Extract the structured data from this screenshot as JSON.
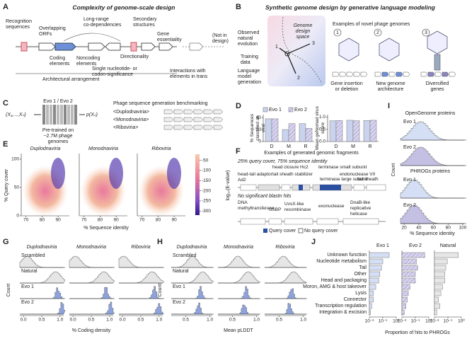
{
  "panel_labels": [
    "A",
    "B",
    "C",
    "D",
    "E",
    "F",
    "G",
    "H",
    "I",
    "J"
  ],
  "A": {
    "title": "Complexity of genome-scale design",
    "labels": [
      "Recognition sequences",
      "Overlapping ORFs",
      "Long-range co-dependencies",
      "Secondary structures",
      "Gene essentiality",
      "Coding elements",
      "Noncoding elements",
      "Directionality",
      "(Not in design)",
      "Single nucleotide- or codon-significance",
      "Interactions with elements in trans",
      "Architectural arrangement"
    ]
  },
  "B": {
    "title": "Synthetic genome design by generative language modeling",
    "labels": [
      "Observed natural evolution",
      "Training data",
      "Language model generation",
      "Genome design space",
      "Examples of novel phage genomes",
      "Gene insertion or deletion",
      "New genome architecture",
      "Diversified genes"
    ],
    "markers": [
      "1",
      "2",
      "3"
    ]
  },
  "C": {
    "model": "Evo 1 / Evo 2",
    "input": "(X₁,...,Xₙ)",
    "output": "p(Xₙ)",
    "pretrain": "Pre-trained on ~2.7M phage genomes",
    "bench_title": "Phage sequence generation benchmarking",
    "prompts": [
      "<Duplodnaviria>",
      "<Monodnaviria>",
      "<Riboviria>"
    ]
  },
  "D": {
    "series_names": [
      "Evo 1",
      "Evo 2"
    ],
    "colors": [
      "#c9d3ee",
      "#bdb7de"
    ],
    "categories": [
      "D",
      "M",
      "R"
    ],
    "charts": [
      {
        "ylabel": "% Sequences classified as viral",
        "ylim": [
          0,
          45
        ],
        "yticks": [
          0,
          20,
          40
        ],
        "series": [
          [
            38,
            20,
            30
          ],
          [
            38,
            30,
            22
          ]
        ]
      },
      {
        "ylabel": "Mean geNomad virus score",
        "ylim": [
          0,
          1.1
        ],
        "yticks": [
          {
            "value": 0,
            "label": "0.0"
          },
          0.5,
          {
            "value": 1,
            "label": "1.0"
          }
        ],
        "series": [
          [
            0.85,
            0.87,
            0.86
          ],
          [
            0.86,
            0.85,
            0.87
          ]
        ]
      }
    ]
  },
  "E": {
    "panels": [
      "Duplodnaviria",
      "Monodnaviria",
      "Riboviria"
    ],
    "ylabel": "% Query cover",
    "xlabel": "% Sequence identity",
    "xlim": [
      67,
      97
    ],
    "xticks": [
      70,
      80,
      90
    ],
    "ylim": [
      0,
      110
    ],
    "yticks": [
      0,
      50,
      100
    ],
    "colorbar_label": "log₁₀(E-value)",
    "colorbar_lim": [
      -20,
      -320
    ],
    "colorbar_ticks": [
      -50,
      -100,
      -150,
      -200,
      -250,
      -300
    ]
  },
  "F": {
    "title": "Examples of generated genomic fragments",
    "sub1": "25% query cover, 75% sequence identity",
    "genes1": [
      "head closure Hc2",
      "terminase small subunit",
      "head-tail adaptor Ad2",
      "tail sheath stabilizer",
      "endonuclease VII",
      "terminase large subunit",
      "tail sheath"
    ],
    "sub2": "No significant blastn hits",
    "genes2": [
      "DNA methyltransferase",
      "SSBP",
      "UvsX-like recombinase",
      "exonuclease",
      "DnaB-like replicative helicase"
    ],
    "legend": [
      "Query cover",
      "No query cover"
    ]
  },
  "G": {
    "columns": [
      "Duplodnaviria",
      "Monodnaviria",
      "Riboviria"
    ],
    "rows": [
      "Scrambled",
      "Natural",
      "Evo 1",
      "Evo 2"
    ],
    "ylabel": "Count",
    "xlabel": "% Coding density",
    "xlim": [
      -0.1,
      1.1
    ],
    "xticks": [
      {
        "value": 0,
        "label": "0.0"
      },
      0.5,
      {
        "value": 1,
        "label": "1.0"
      }
    ]
  },
  "H": {
    "columns": [
      "Duplodnaviria",
      "Monodnaviria",
      "Riboviria"
    ],
    "rows": [
      "Scrambled",
      "Natural",
      "Evo 1",
      "Evo 2"
    ],
    "ylabel": "Count",
    "xlabel": "Mean pLDDT",
    "xlim": [
      0.2,
      1.05
    ],
    "xticks": [
      0.5,
      {
        "value": 1,
        "label": "1.0"
      }
    ]
  },
  "I": {
    "panels": [
      "OpenGenome proteins",
      "PHROGs proteins"
    ],
    "rows": [
      "Evo 1",
      "Evo 2"
    ],
    "ylabel": "Count",
    "xlabel": "% Sequence identity",
    "xlim": [
      15,
      102
    ],
    "xticks": [
      20,
      40,
      60,
      80,
      100
    ]
  },
  "J": {
    "panels": [
      "Evo 1",
      "Evo 2",
      "Natural"
    ],
    "colors": [
      "#d4def4",
      "#c4c0e4",
      "#e6e6e6"
    ],
    "categories": [
      "Unknown function",
      "Nucleotide metabolism",
      "Tail",
      "Other",
      "Head and packaging",
      "Moron, AMG & host takeover",
      "Lysis",
      "Connector",
      "Transcription regulation",
      "Integration & excision"
    ],
    "values": [
      [
        0.3,
        0.1,
        0.08,
        0.06,
        0.05,
        0.03,
        0.02,
        0.02,
        0.015,
        0.012
      ],
      [
        0.5,
        0.12,
        0.15,
        0.1,
        0.1,
        0.04,
        0.03,
        0.025,
        0.02,
        0.015
      ],
      [
        0.6,
        0.09,
        0.07,
        0.06,
        0.06,
        0.04,
        0.03,
        0.02,
        0.025,
        0.015
      ]
    ],
    "xlabel": "Proportion of hits to PHROGs",
    "xlim": [
      0.01,
      1
    ],
    "xticks": [
      {
        "value": 0.01,
        "label": "10⁻²"
      },
      {
        "value": 0.1,
        "label": "10⁻¹"
      },
      {
        "value": 1,
        "label": "10⁰"
      }
    ]
  }
}
